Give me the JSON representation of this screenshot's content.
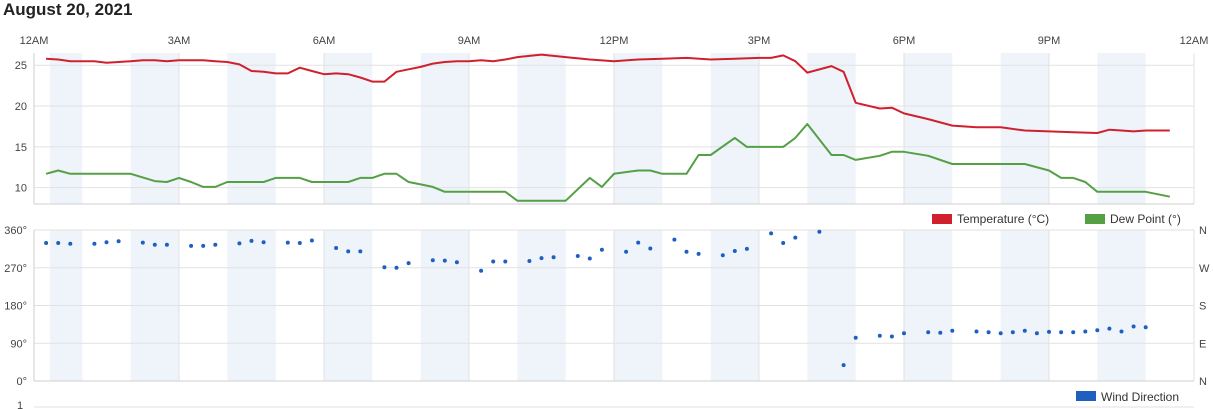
{
  "header": {
    "date": "August 20, 2021"
  },
  "chart_data": [
    {
      "type": "line",
      "x_ticks": [
        "12AM",
        "3AM",
        "6AM",
        "9AM",
        "12PM",
        "3PM",
        "6PM",
        "9PM",
        "12AM"
      ],
      "xlim": [
        0,
        24
      ],
      "ylim": [
        8,
        26.5
      ],
      "y_ticks": [
        "10",
        "15",
        "20",
        "25"
      ],
      "y_tick_values": [
        10,
        15,
        20,
        25
      ],
      "legend_position": "bottom-right",
      "shaded_bands": [
        [
          0.33,
          1.0
        ],
        [
          2.0,
          3.0
        ],
        [
          4.0,
          5.0
        ],
        [
          6.0,
          7.0
        ],
        [
          8.0,
          9.0
        ],
        [
          10.0,
          11.0
        ],
        [
          12.0,
          13.0
        ],
        [
          14.0,
          15.0
        ],
        [
          16.0,
          17.0
        ],
        [
          18.0,
          19.0
        ],
        [
          20.0,
          21.0
        ],
        [
          22.0,
          23.0
        ]
      ],
      "series": [
        {
          "name": "Temperature (°C)",
          "color": "#d0202e",
          "points": [
            [
              0.25,
              25.8
            ],
            [
              0.5,
              25.7
            ],
            [
              0.75,
              25.5
            ],
            [
              1.0,
              25.5
            ],
            [
              1.25,
              25.5
            ],
            [
              1.5,
              25.3
            ],
            [
              1.75,
              25.4
            ],
            [
              2.0,
              25.5
            ],
            [
              2.25,
              25.6
            ],
            [
              2.5,
              25.6
            ],
            [
              2.75,
              25.5
            ],
            [
              3.0,
              25.6
            ],
            [
              3.25,
              25.6
            ],
            [
              3.5,
              25.6
            ],
            [
              3.75,
              25.5
            ],
            [
              4.0,
              25.4
            ],
            [
              4.25,
              25.1
            ],
            [
              4.5,
              24.3
            ],
            [
              4.75,
              24.2
            ],
            [
              5.0,
              24.0
            ],
            [
              5.25,
              24.0
            ],
            [
              5.5,
              24.7
            ],
            [
              5.75,
              24.3
            ],
            [
              6.0,
              23.9
            ],
            [
              6.25,
              24.0
            ],
            [
              6.5,
              23.9
            ],
            [
              6.75,
              23.5
            ],
            [
              7.0,
              23.0
            ],
            [
              7.25,
              23.0
            ],
            [
              7.5,
              24.2
            ],
            [
              7.75,
              24.5
            ],
            [
              8.0,
              24.8
            ],
            [
              8.25,
              25.2
            ],
            [
              8.5,
              25.4
            ],
            [
              8.75,
              25.5
            ],
            [
              9.0,
              25.5
            ],
            [
              9.25,
              25.6
            ],
            [
              9.5,
              25.5
            ],
            [
              9.75,
              25.7
            ],
            [
              10.0,
              26.0
            ],
            [
              10.5,
              26.3
            ],
            [
              11.0,
              26.0
            ],
            [
              11.5,
              25.7
            ],
            [
              12.0,
              25.5
            ],
            [
              12.5,
              25.7
            ],
            [
              13.0,
              25.8
            ],
            [
              13.5,
              25.9
            ],
            [
              14.0,
              25.7
            ],
            [
              14.5,
              25.8
            ],
            [
              15.0,
              25.9
            ],
            [
              15.25,
              25.9
            ],
            [
              15.5,
              26.2
            ],
            [
              15.75,
              25.5
            ],
            [
              16.0,
              24.1
            ],
            [
              16.5,
              24.9
            ],
            [
              16.75,
              24.2
            ],
            [
              17.0,
              20.4
            ],
            [
              17.5,
              19.7
            ],
            [
              17.75,
              19.8
            ],
            [
              18.0,
              19.1
            ],
            [
              18.5,
              18.4
            ],
            [
              19.0,
              17.6
            ],
            [
              19.5,
              17.4
            ],
            [
              20.0,
              17.4
            ],
            [
              20.5,
              17.0
            ],
            [
              21.0,
              16.9
            ],
            [
              21.5,
              16.8
            ],
            [
              22.0,
              16.7
            ],
            [
              22.25,
              17.1
            ],
            [
              22.5,
              17.0
            ],
            [
              22.75,
              16.9
            ],
            [
              23.0,
              17.0
            ],
            [
              23.5,
              17.0
            ]
          ]
        },
        {
          "name": "Dew Point (°)",
          "color": "#55a045",
          "points": [
            [
              0.25,
              11.7
            ],
            [
              0.5,
              12.1
            ],
            [
              0.75,
              11.7
            ],
            [
              1.0,
              11.7
            ],
            [
              1.5,
              11.7
            ],
            [
              2.0,
              11.7
            ],
            [
              2.5,
              10.8
            ],
            [
              2.75,
              10.7
            ],
            [
              3.0,
              11.2
            ],
            [
              3.25,
              10.7
            ],
            [
              3.5,
              10.1
            ],
            [
              3.75,
              10.1
            ],
            [
              4.0,
              10.7
            ],
            [
              4.5,
              10.7
            ],
            [
              4.75,
              10.7
            ],
            [
              5.0,
              11.2
            ],
            [
              5.5,
              11.2
            ],
            [
              5.75,
              10.7
            ],
            [
              6.0,
              10.7
            ],
            [
              6.5,
              10.7
            ],
            [
              6.75,
              11.2
            ],
            [
              7.0,
              11.2
            ],
            [
              7.25,
              11.7
            ],
            [
              7.5,
              11.7
            ],
            [
              7.75,
              10.7
            ],
            [
              8.0,
              10.4
            ],
            [
              8.25,
              10.1
            ],
            [
              8.5,
              9.5
            ],
            [
              9.0,
              9.5
            ],
            [
              9.5,
              9.5
            ],
            [
              9.75,
              9.5
            ],
            [
              10.0,
              8.4
            ],
            [
              10.5,
              8.4
            ],
            [
              11.0,
              8.4
            ],
            [
              11.5,
              11.2
            ],
            [
              11.75,
              10.1
            ],
            [
              12.0,
              11.7
            ],
            [
              12.5,
              12.1
            ],
            [
              12.75,
              12.1
            ],
            [
              13.0,
              11.7
            ],
            [
              13.5,
              11.7
            ],
            [
              13.75,
              14.0
            ],
            [
              14.0,
              14.0
            ],
            [
              14.5,
              16.1
            ],
            [
              14.75,
              15.0
            ],
            [
              15.0,
              15.0
            ],
            [
              15.5,
              15.0
            ],
            [
              15.75,
              16.1
            ],
            [
              16.0,
              17.8
            ],
            [
              16.5,
              14.0
            ],
            [
              16.75,
              14.0
            ],
            [
              17.0,
              13.4
            ],
            [
              17.5,
              13.9
            ],
            [
              17.75,
              14.4
            ],
            [
              18.0,
              14.4
            ],
            [
              18.5,
              13.9
            ],
            [
              19.0,
              12.9
            ],
            [
              19.5,
              12.9
            ],
            [
              20.0,
              12.9
            ],
            [
              20.5,
              12.9
            ],
            [
              21.0,
              12.1
            ],
            [
              21.25,
              11.2
            ],
            [
              21.5,
              11.2
            ],
            [
              21.75,
              10.7
            ],
            [
              22.0,
              9.5
            ],
            [
              22.5,
              9.5
            ],
            [
              23.0,
              9.5
            ],
            [
              23.5,
              8.9
            ]
          ]
        }
      ]
    },
    {
      "type": "scatter",
      "xlim": [
        0,
        24
      ],
      "ylim": [
        0,
        360
      ],
      "y_ticks": [
        "0°",
        "90°",
        "180°",
        "270°",
        "360°"
      ],
      "y_tick_values": [
        0,
        90,
        180,
        270,
        360
      ],
      "y2_ticks": [
        "N",
        "E",
        "S",
        "W",
        "N"
      ],
      "legend_position": "bottom-right",
      "series": [
        {
          "name": "Wind Direction",
          "color": "#1f5fbf",
          "points": [
            [
              0.25,
              329
            ],
            [
              0.5,
              329
            ],
            [
              0.75,
              327
            ],
            [
              1.25,
              327
            ],
            [
              1.5,
              331
            ],
            [
              1.75,
              333
            ],
            [
              2.25,
              330
            ],
            [
              2.5,
              325
            ],
            [
              2.75,
              325
            ],
            [
              3.25,
              322
            ],
            [
              3.5,
              322
            ],
            [
              3.75,
              325
            ],
            [
              4.25,
              328
            ],
            [
              4.5,
              334
            ],
            [
              4.75,
              331
            ],
            [
              5.25,
              330
            ],
            [
              5.5,
              329
            ],
            [
              5.75,
              335
            ],
            [
              6.25,
              317
            ],
            [
              6.5,
              309
            ],
            [
              6.75,
              309
            ],
            [
              7.25,
              271
            ],
            [
              7.5,
              270
            ],
            [
              7.75,
              281
            ],
            [
              8.25,
              288
            ],
            [
              8.5,
              287
            ],
            [
              8.75,
              283
            ],
            [
              9.25,
              263
            ],
            [
              9.5,
              285
            ],
            [
              9.75,
              285
            ],
            [
              10.25,
              286
            ],
            [
              10.5,
              293
            ],
            [
              10.75,
              295
            ],
            [
              11.25,
              298
            ],
            [
              11.5,
              292
            ],
            [
              11.75,
              313
            ],
            [
              12.25,
              308
            ],
            [
              12.5,
              330
            ],
            [
              12.75,
              316
            ],
            [
              13.25,
              337
            ],
            [
              13.5,
              308
            ],
            [
              13.75,
              303
            ],
            [
              14.25,
              300
            ],
            [
              14.5,
              310
            ],
            [
              14.75,
              315
            ],
            [
              15.25,
              352
            ],
            [
              15.5,
              329
            ],
            [
              15.75,
              342
            ],
            [
              16.25,
              356
            ],
            [
              16.75,
              38
            ],
            [
              17.0,
              103
            ],
            [
              17.5,
              108
            ],
            [
              17.75,
              106
            ],
            [
              18.0,
              114
            ],
            [
              18.5,
              116
            ],
            [
              18.75,
              115
            ],
            [
              19.0,
              120
            ],
            [
              19.5,
              118
            ],
            [
              19.75,
              116
            ],
            [
              20.0,
              114
            ],
            [
              20.25,
              116
            ],
            [
              20.5,
              120
            ],
            [
              20.75,
              114
            ],
            [
              21.0,
              117
            ],
            [
              21.25,
              116
            ],
            [
              21.5,
              116
            ],
            [
              21.75,
              118
            ],
            [
              22.0,
              121
            ],
            [
              22.25,
              125
            ],
            [
              22.5,
              118
            ],
            [
              22.75,
              130
            ],
            [
              23.0,
              128
            ]
          ]
        }
      ]
    }
  ],
  "footer": {
    "next_axis_tick": "1"
  }
}
